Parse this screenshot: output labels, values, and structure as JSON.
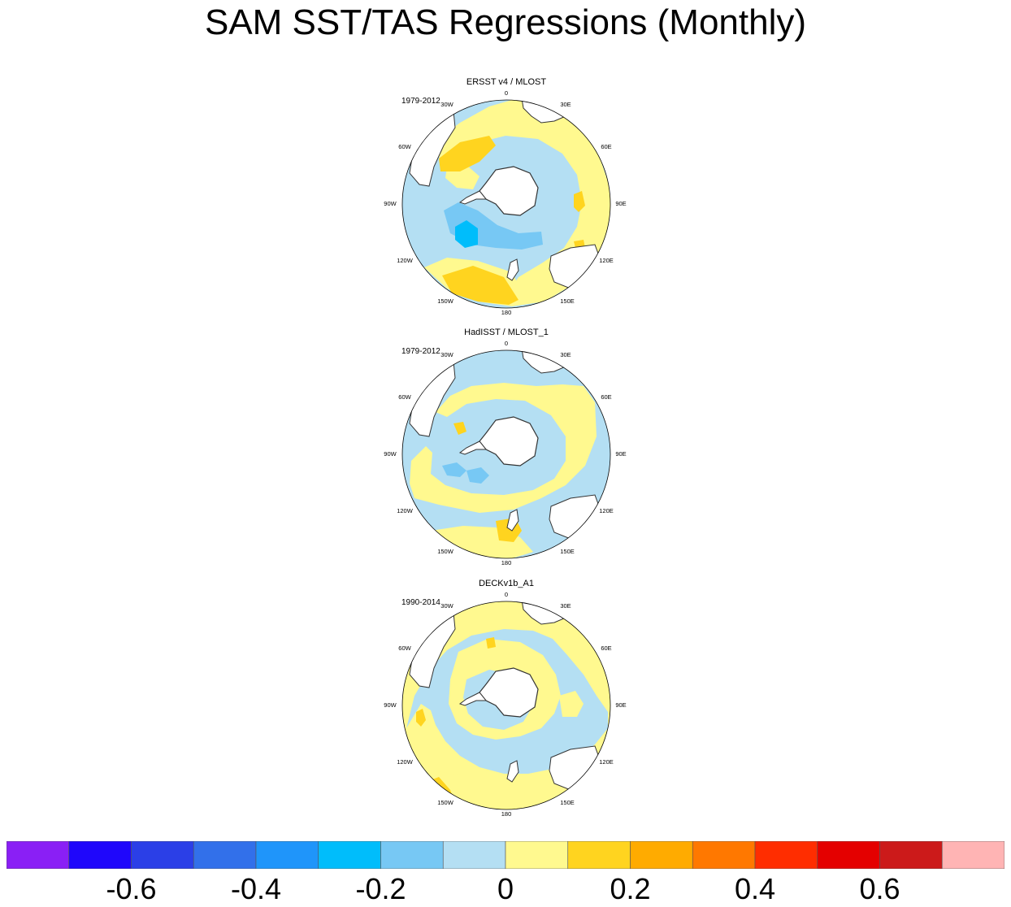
{
  "title": "SAM SST/TAS Regressions (Monthly)",
  "panels": [
    {
      "title": "ERSST v4 / MLOST",
      "period": "1979-2012",
      "pattern": "ersst"
    },
    {
      "title": "HadISST / MLOST_1",
      "period": "1979-2012",
      "pattern": "hadisst"
    },
    {
      "title": "DECKv1b_A1",
      "period": "1990-2014",
      "pattern": "deck"
    }
  ],
  "longitude_labels": [
    "0",
    "30E",
    "60E",
    "90E",
    "120E",
    "150E",
    "180",
    "150W",
    "120W",
    "90W",
    "60W",
    "30W"
  ],
  "colorbar": {
    "colors": [
      "#8a1ff5",
      "#1f07fb",
      "#2b3fe7",
      "#3270ea",
      "#1f95fa",
      "#00bdfb",
      "#77c8f4",
      "#b4dff3",
      "#fff98f",
      "#ffd41f",
      "#ffab00",
      "#ff7800",
      "#ff2d00",
      "#e40000",
      "#cc1a1a",
      "#ffb4b4"
    ],
    "boundaries": [
      -0.7,
      -0.6,
      -0.5,
      -0.4,
      -0.3,
      -0.2,
      -0.1,
      0,
      0.1,
      0.2,
      0.3,
      0.4,
      0.5,
      0.6,
      0.7
    ],
    "tick_labels": [
      "-0.6",
      "-0.4",
      "-0.2",
      "0",
      "0.2",
      "0.4",
      "0.6"
    ],
    "tick_values": [
      -0.6,
      -0.4,
      -0.2,
      0,
      0.2,
      0.4,
      0.6
    ]
  }
}
